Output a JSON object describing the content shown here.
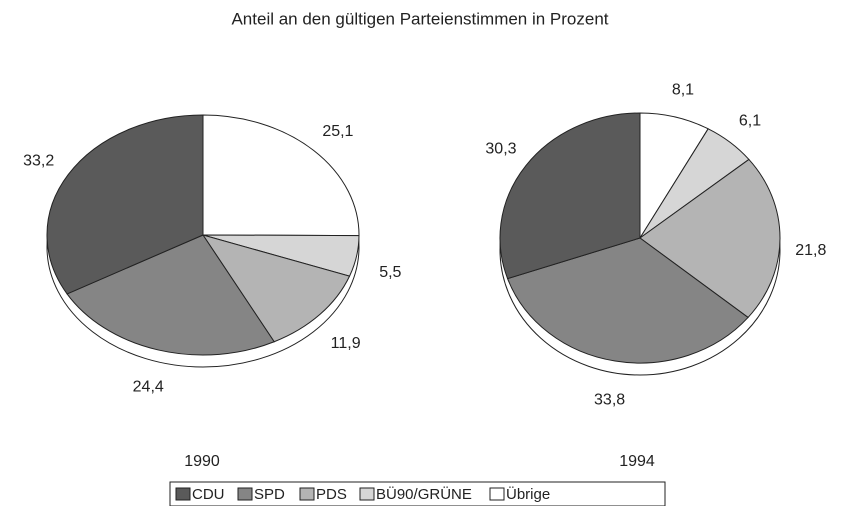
{
  "title": "Anteil an den  gültigen Parteienstimmen in Prozent",
  "chart_data": [
    {
      "type": "pie",
      "title": "1990",
      "categories": [
        "CDU",
        "SPD",
        "PDS",
        "BÜ90/GRÜNE",
        "Übrige"
      ],
      "colors": [
        "#5a5a5a",
        "#858585",
        "#b4b4b4",
        "#d6d6d6",
        "#ffffff"
      ],
      "values": [
        33.2,
        24.4,
        11.9,
        5.5,
        25.1
      ],
      "value_labels": [
        "33,2",
        "24,4",
        "11,9",
        "5,5",
        "25,1"
      ]
    },
    {
      "type": "pie",
      "title": "1994",
      "categories": [
        "CDU",
        "SPD",
        "PDS",
        "BÜ90/GRÜNE",
        "Übrige"
      ],
      "colors": [
        "#5a5a5a",
        "#858585",
        "#b4b4b4",
        "#d6d6d6",
        "#ffffff"
      ],
      "values": [
        30.3,
        33.8,
        21.8,
        6.1,
        8.1
      ],
      "value_labels": [
        "30,3",
        "33,8",
        "21,8",
        "6,1",
        "8,1"
      ]
    }
  ]
}
